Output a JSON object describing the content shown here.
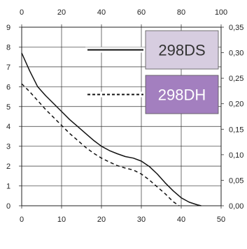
{
  "chart_data": {
    "type": "line",
    "title": "",
    "xlabel": "",
    "ylabel": "",
    "x_bottom": {
      "range": [
        0,
        50
      ],
      "ticks": [
        "0",
        "10",
        "20",
        "30",
        "40",
        "50"
      ]
    },
    "x_top": {
      "range": [
        0,
        100
      ],
      "ticks": [
        "0",
        "20",
        "40",
        "60",
        "80",
        "100"
      ]
    },
    "y_left": {
      "range": [
        0,
        9
      ],
      "ticks": [
        "0",
        "1",
        "2",
        "3",
        "4",
        "5",
        "6",
        "7",
        "8",
        "9"
      ]
    },
    "y_right": {
      "range": [
        0,
        0.35
      ],
      "ticks": [
        "0,00",
        "0,05",
        "0,10",
        "0,15",
        "0,20",
        "0,25",
        "0,30",
        "0,35"
      ]
    },
    "grid": true,
    "legend_position": "top-right",
    "series": [
      {
        "name": "298DS",
        "line_style": "solid",
        "legend_color": "#d7cde0",
        "x": [
          0,
          2,
          4,
          6,
          8,
          10,
          12,
          14,
          16,
          18,
          20,
          22,
          24,
          26,
          28,
          30,
          32,
          34,
          36,
          38,
          40,
          42,
          44,
          45
        ],
        "y": [
          7.7,
          6.8,
          6.0,
          5.55,
          5.15,
          4.75,
          4.35,
          4.0,
          3.65,
          3.3,
          3.0,
          2.78,
          2.62,
          2.48,
          2.4,
          2.25,
          1.98,
          1.6,
          1.15,
          0.75,
          0.4,
          0.18,
          0.05,
          0.0
        ]
      },
      {
        "name": "298DH",
        "line_style": "dashed",
        "legend_color": "#a37fbf",
        "x": [
          0,
          2,
          4,
          6,
          8,
          10,
          12,
          14,
          16,
          18,
          20,
          22,
          24,
          26,
          28,
          30,
          32,
          34,
          36,
          38,
          39.5
        ],
        "y": [
          6.15,
          5.75,
          5.3,
          4.85,
          4.45,
          4.05,
          3.65,
          3.3,
          2.95,
          2.65,
          2.4,
          2.2,
          2.02,
          1.9,
          1.8,
          1.6,
          1.3,
          0.95,
          0.6,
          0.2,
          0.0
        ]
      }
    ]
  }
}
